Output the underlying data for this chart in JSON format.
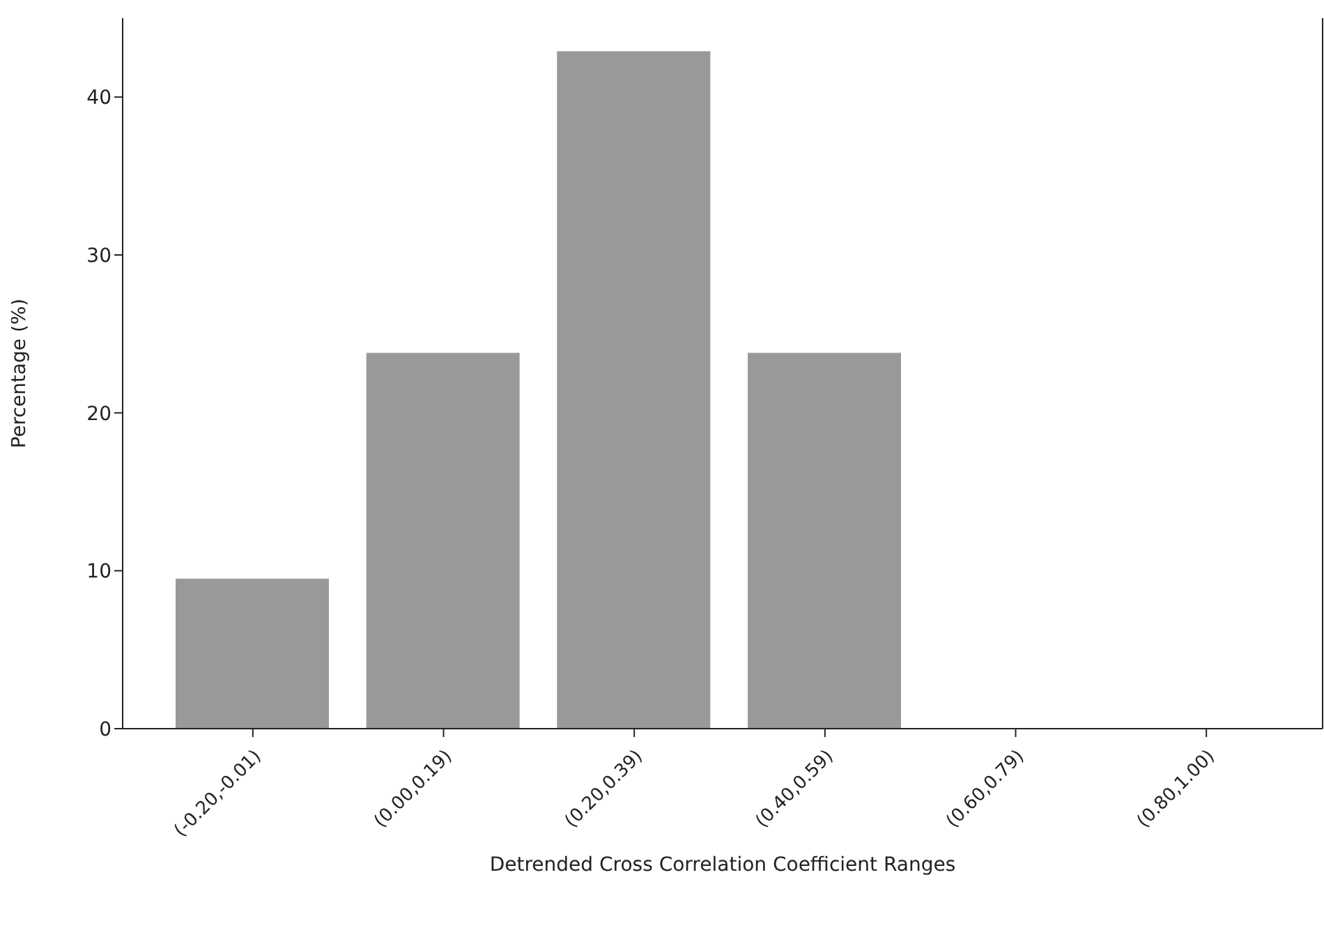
{
  "chart_data": {
    "type": "bar",
    "xlabel": "Detrended Cross Correlation Coefficient Ranges",
    "ylabel": "Percentage (%)",
    "categories": [
      "(-0.20,-0.01)",
      "(0.00,0.19)",
      "(0.20,0.39)",
      "(0.40,0.59)",
      "(0.60,0.79)",
      "(0.80,1.00)"
    ],
    "values": [
      9.5,
      23.8,
      42.9,
      23.8,
      0,
      0
    ],
    "color": "#999999",
    "ylim": [
      0,
      45
    ],
    "yticks": [
      0,
      10,
      20,
      30,
      40
    ]
  }
}
